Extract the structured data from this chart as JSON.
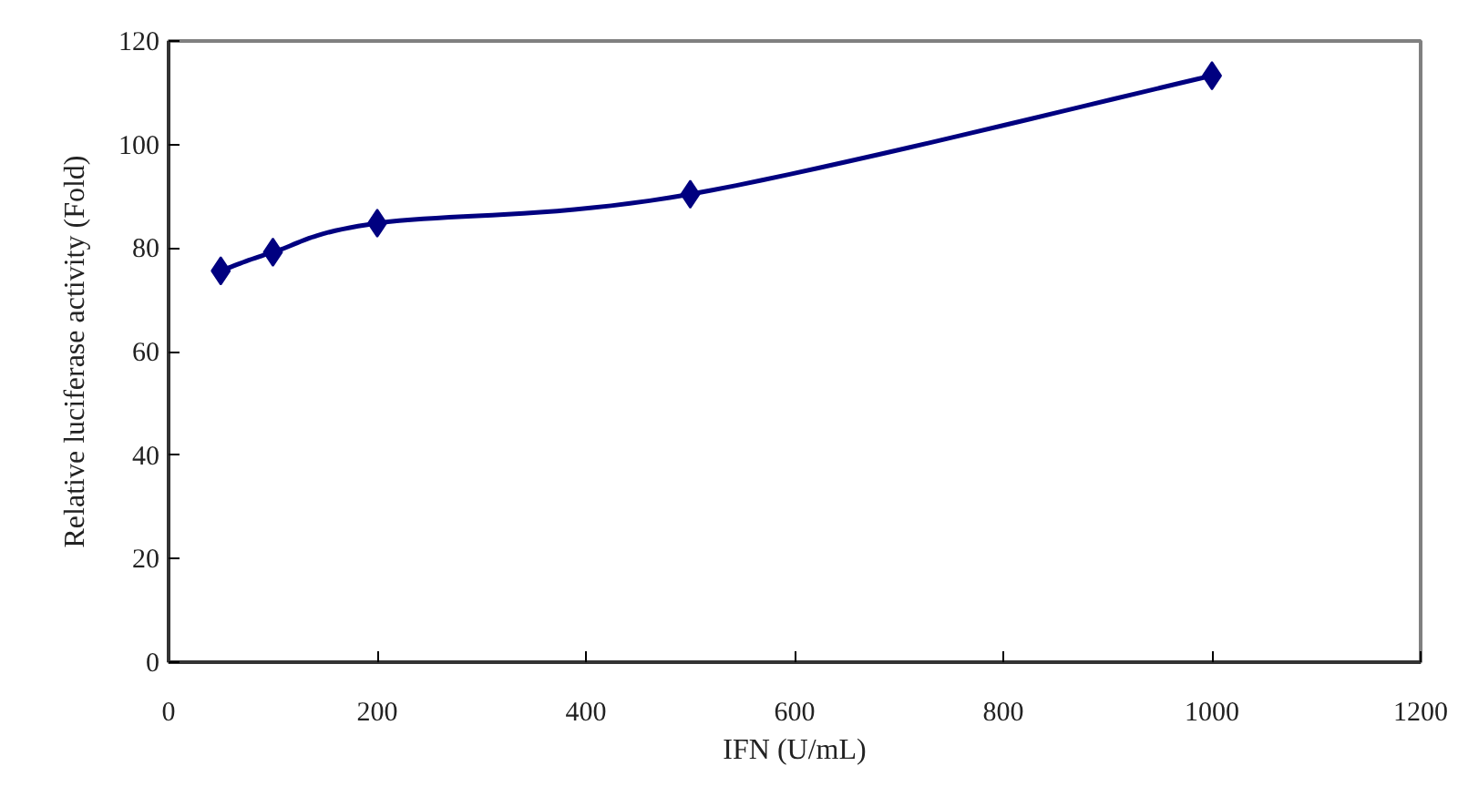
{
  "chart_data": {
    "type": "line",
    "xlabel": "IFN (U/mL)",
    "ylabel": "Relative luciferase activity (Fold)",
    "x": [
      50,
      100,
      200,
      500,
      1000
    ],
    "series": [
      {
        "color": "#000080",
        "values": [
          75.6,
          79.2,
          84.8,
          90.4,
          113.3
        ]
      }
    ],
    "xlim": [
      0,
      1200
    ],
    "xticks": [
      0,
      200,
      400,
      600,
      800,
      1000,
      1200
    ],
    "ylim": [
      0,
      120
    ],
    "yticks": [
      0,
      20,
      40,
      60,
      80,
      100,
      120
    ],
    "grid": false,
    "marker": "diamond",
    "line_style": "solid"
  }
}
